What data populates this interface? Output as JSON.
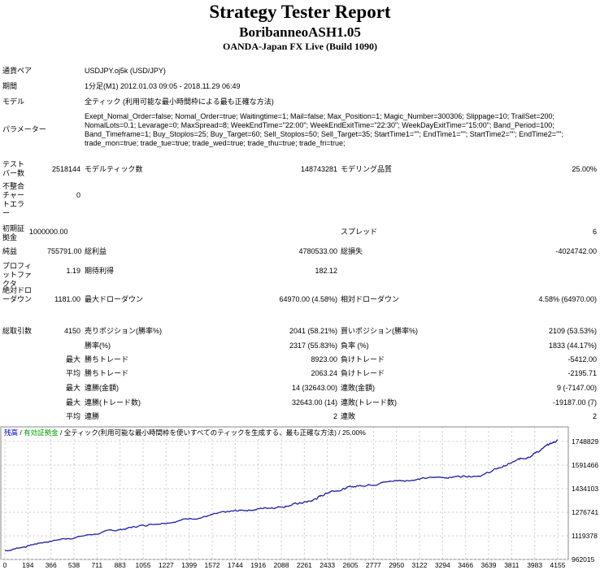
{
  "header": {
    "title": "Strategy Tester Report",
    "ea_name": "BoribanneoASH1.05",
    "server": "OANDA-Japan FX Live (Build 1090)"
  },
  "info": {
    "symbol_label": "通貨ペア",
    "symbol": "USDJPY.oj5k (USD/JPY)",
    "period_label": "期間",
    "period": "1分足(M1) 2012.01.03 09:05 - 2018.11.29 06:49",
    "model_label": "モデル",
    "model": "全ティック (利用可能な最小時間枠による最も正確な方法)",
    "params_label": "パラメーター",
    "params": "Exept_Nomal_Order=false; Nomal_Order=true; Waitingtime=1; Mail=false; Max_Position=1; Magic_Number=300306; Slippage=10; TrailSet=200; NomalLots=0.1; Levarage=0; MaxSpread=8; WeekEndTime=\"22:00\"; WeekEndExitTime=\"22:30\"; WeekDayExitTime=\"15:00\"; Band_Period=100; Band_Timeframe=1; Buy_Stoplos=25; Buy_Target=60; Sell_Stoplos=50; Sell_Target=35; StartTime1=\"\"; EndTime1=\"\"; StartTime2=\"\"; EndTime2=\"\"; trade_mon=true; trade_tue=true; trade_wed=true; trade_thu=true; trade_fri=true;"
  },
  "stats": {
    "bars_label": "テストバー数",
    "bars": "2518144",
    "ticks_label": "モデルティック数",
    "ticks": "148743281",
    "quality_label": "モデリング品質",
    "quality": "25.00%",
    "mismatch_label": "不整合チャートエラー",
    "mismatch": "0",
    "deposit_label": "初期証拠金",
    "deposit": "1000000.00",
    "spread_label": "スプレッド",
    "spread": "6",
    "net_label": "純益",
    "net": "755791.00",
    "gross_profit_label": "総利益",
    "gross_profit": "4780533.00",
    "gross_loss_label": "総損失",
    "gross_loss": "-4024742.00",
    "pf_label": "プロフィットファクタ",
    "pf": "1.19",
    "expected_label": "期待利得",
    "expected": "182.12",
    "abs_dd_label": "絶対ドローダウン",
    "abs_dd": "1181.00",
    "max_dd_label": "最大ドローダウン",
    "max_dd": "64970.00 (4.58%)",
    "rel_dd_label": "相対ドローダウン",
    "rel_dd": "4.58% (64970.00)",
    "trades_label": "総取引数",
    "trades": "4150",
    "short_label": "売りポジション(勝率%)",
    "short": "2041 (58.21%)",
    "long_label": "買いポジション(勝率%)",
    "long": "2109 (53.53%)",
    "win_label": "勝率(%)",
    "win": "2317 (55.83%)",
    "loss_label": "負率 (%)",
    "loss": "1833 (44.17%)",
    "max_label": "最大",
    "avg_label": "平均",
    "max_win_label": "勝ちトレード",
    "max_win": "8923.00",
    "max_loss_label": "負けトレード",
    "max_loss": "-5412.00",
    "avg_win_label": "勝ちトレード",
    "avg_win": "2063.24",
    "avg_loss_label": "負けトレード",
    "avg_loss": "-2195.71",
    "cw_money_label": "連勝(金額)",
    "cw_money": "14 (32643.00)",
    "cl_money_label": "連敗(金額)",
    "cl_money": "9 (-7147.00)",
    "cw_count_label": "連勝(トレード数)",
    "cw_count": "32643.00 (14)",
    "cl_count_label": "連敗(トレード数)",
    "cl_count": "-19187.00 (7)",
    "avg_cw_label": "連勝",
    "avg_cw": "2",
    "avg_cl_label": "連敗",
    "avg_cl": "2"
  },
  "chart_data": {
    "type": "line",
    "legend": {
      "balance": "残高",
      "sep1": " / ",
      "equity": "有効証拠金",
      "rest": " / 全ティック(利用可能な最小時間枠を使いすべてのティックを生成する、最も正確な方法) / 25.00%"
    },
    "colors": {
      "balance": "#0000c0",
      "equity": "#00a000",
      "line": "#2020a0"
    },
    "x_ticks": [
      "0",
      "194",
      "366",
      "538",
      "711",
      "883",
      "1055",
      "1227",
      "1399",
      "1572",
      "1744",
      "1916",
      "2088",
      "2261",
      "2433",
      "2605",
      "2777",
      "2950",
      "3122",
      "3294",
      "3466",
      "3639",
      "3811",
      "3983",
      "4155"
    ],
    "y_ticks": [
      "1748829",
      "1591466",
      "1434103",
      "1276741",
      "1119378",
      "962015"
    ],
    "xlim": [
      0,
      4155
    ],
    "ylim": [
      962015,
      1748829
    ],
    "series": [
      {
        "name": "残高",
        "x": [
          0,
          300,
          800,
          1100,
          1500,
          1800,
          2100,
          2300,
          2450,
          2700,
          2950,
          3300,
          3600,
          3850,
          4000,
          4155
        ],
        "y": [
          1020000,
          1080000,
          1150000,
          1200000,
          1250000,
          1290000,
          1320000,
          1350000,
          1420000,
          1460000,
          1490000,
          1510000,
          1530000,
          1620000,
          1680000,
          1757000
        ]
      }
    ]
  }
}
